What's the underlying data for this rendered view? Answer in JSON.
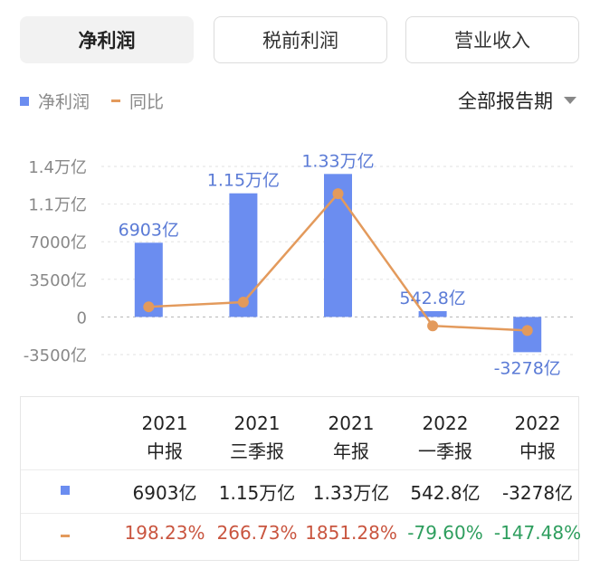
{
  "tabs": [
    {
      "label": "净利润",
      "active": true
    },
    {
      "label": "税前利润",
      "active": false
    },
    {
      "label": "营业收入",
      "active": false
    }
  ],
  "legend": {
    "bar": "净利润",
    "line": "同比",
    "bar_color": "#6b8df0",
    "line_color": "#e39a5c"
  },
  "period_select": "全部报告期",
  "chart_data": {
    "type": "bar",
    "categories": [
      "2021 中报",
      "2021 三季报",
      "2021 年报",
      "2022 一季报",
      "2022 中报"
    ],
    "series": [
      {
        "name": "净利润",
        "type": "bar",
        "unit": "亿",
        "values": [
          6903,
          11500,
          13300,
          542.8,
          -3278
        ],
        "labels": [
          "6903亿",
          "1.15万亿",
          "1.33万亿",
          "542.8亿",
          "-3278亿"
        ]
      },
      {
        "name": "同比",
        "type": "line",
        "unit": "%",
        "values": [
          198.23,
          266.73,
          1851.28,
          -79.6,
          -147.48
        ]
      }
    ],
    "y_ticks": [
      "1.4万亿",
      "1.1万亿",
      "7000亿",
      "3500亿",
      "0",
      "-3500亿"
    ],
    "y_tick_values": [
      14000,
      10500,
      7000,
      3500,
      0,
      -3500
    ],
    "ylim": [
      -3500,
      14000
    ],
    "line_ylim": [
      -500,
      2250
    ],
    "grid": true
  },
  "table": {
    "headers": [
      [
        "2021",
        "中报"
      ],
      [
        "2021",
        "三季报"
      ],
      [
        "2021",
        "年报"
      ],
      [
        "2022",
        "一季报"
      ],
      [
        "2022",
        "中报"
      ]
    ],
    "profit": [
      "6903亿",
      "1.15万亿",
      "1.33万亿",
      "542.8亿",
      "-3278亿"
    ],
    "yoy": [
      "198.23%",
      "266.73%",
      "1851.28%",
      "-79.60%",
      "-147.48%"
    ],
    "yoy_dir": [
      "up",
      "up",
      "up",
      "down",
      "down"
    ]
  }
}
